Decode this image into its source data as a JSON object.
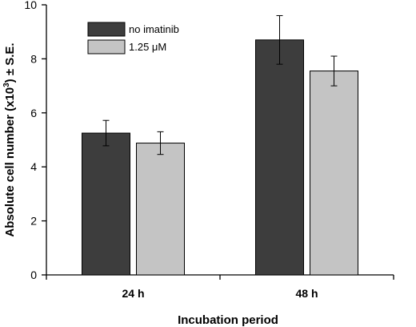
{
  "chart_data": {
    "type": "bar",
    "categories": [
      "24 h",
      "48 h"
    ],
    "series": [
      {
        "name": "no imatinib",
        "values": [
          5.25,
          8.7
        ],
        "errors": [
          0.47,
          0.9
        ],
        "color": "#3d3d3d"
      },
      {
        "name": "1.25 μM",
        "values": [
          4.88,
          7.55
        ],
        "errors": [
          0.42,
          0.55
        ],
        "color": "#c4c4c4"
      }
    ],
    "xlabel": "Incubation period",
    "ylabel": "Absolute cell number (x10³) ± S.E.",
    "ylabel_parts": {
      "pre": "Absolute cell number (x10",
      "sup": "3",
      "post": ") ± S.E."
    },
    "ylim": [
      0,
      10
    ],
    "yticks": [
      "0",
      "2",
      "4",
      "6",
      "8",
      "10"
    ],
    "grid": false,
    "legend_position": "top-left"
  }
}
